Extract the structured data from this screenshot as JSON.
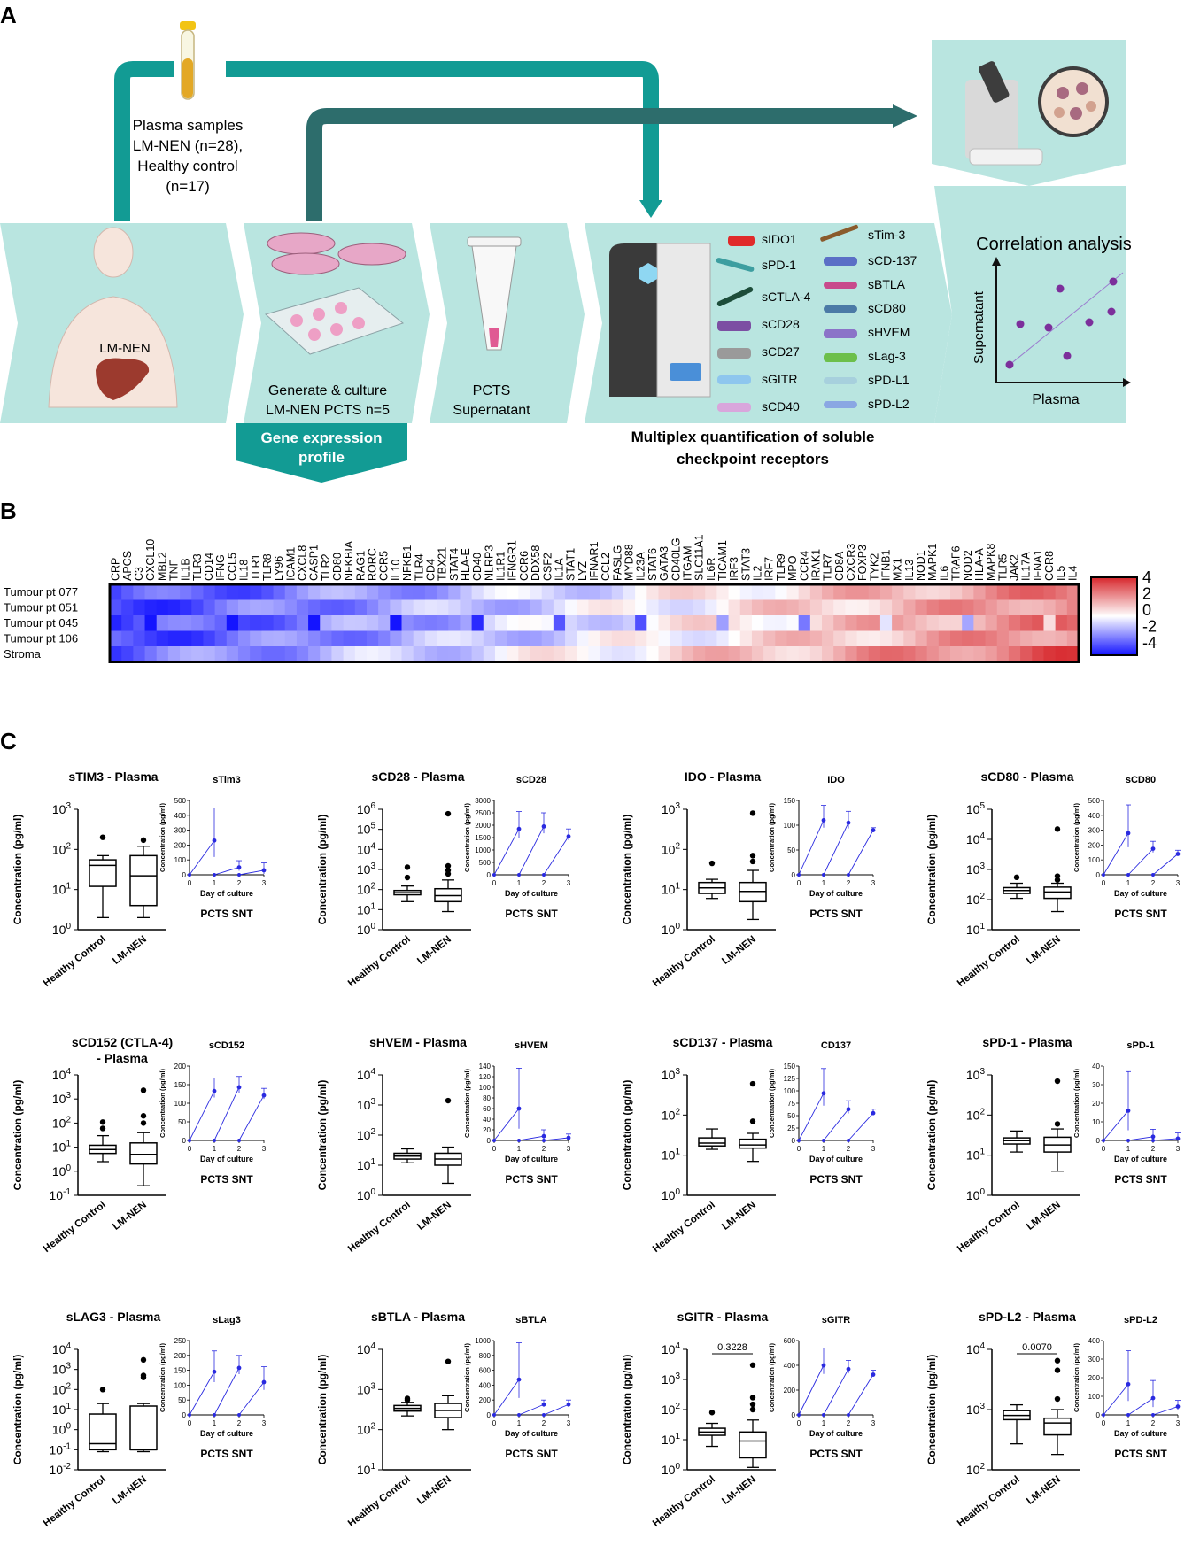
{
  "panel_a": {
    "label": "A",
    "plasma_lines": [
      "Plasma samples",
      "LM-NEN (n=28),",
      "Healthy control",
      "(n=17)"
    ],
    "patient_label": "LM-NEN",
    "culture_lines": [
      "Generate & culture",
      "LM-NEN PCTS n=5"
    ],
    "gene_expression_lines": [
      "Gene expression",
      "profile"
    ],
    "supernatant_lines": [
      "PCTS",
      "Supernatant"
    ],
    "multiplex_lines": [
      "Multiplex quantification of soluble",
      "checkpoint receptors"
    ],
    "receptors_left": [
      "sIDO1",
      "sPD-1",
      "sCTLA-4",
      "sCD28",
      "sCD27",
      "sGITR",
      "sCD40"
    ],
    "receptors_right": [
      "sTim-3",
      "sCD-137",
      "sBTLA",
      "sCD80",
      "sHVEM",
      "sLag-3",
      "sPD-L1",
      "sPD-L2"
    ],
    "correlation_title": "Correlation analysis",
    "correlation_ylabel": "Supernatant",
    "correlation_xlabel": "Plasma"
  },
  "panel_b": {
    "label": "B",
    "genes": [
      "CRP",
      "APCS",
      "C3",
      "CXCL10",
      "MBL2",
      "TNF",
      "IL1B",
      "TLR3",
      "CD14",
      "IFNG",
      "CCL5",
      "IL18",
      "TLR1",
      "TLR8",
      "LY96",
      "ICAM1",
      "CXCL8",
      "CASP1",
      "TLR2",
      "CD80",
      "NFKBIA",
      "RAG1",
      "RORC",
      "CCR5",
      "IL10",
      "NFKB1",
      "TLR4",
      "CD4",
      "TBX21",
      "STAT4",
      "HLA-E",
      "CD40",
      "NLRP3",
      "IL1R1",
      "IFNGR1",
      "CCR6",
      "DDX58",
      "CSF2",
      "IL1A",
      "STAT1",
      "LYZ",
      "IFNAR1",
      "CCL2",
      "FASLG",
      "MYD88",
      "IL23A",
      "STAT6",
      "GATA3",
      "CD40LG",
      "ITGAM",
      "SLC11A1",
      "IL6R",
      "TICAM1",
      "IRF3",
      "STAT3",
      "IL2",
      "IRF7",
      "TLR9",
      "MPO",
      "CCR4",
      "IRAK1",
      "TLR7",
      "CD8A",
      "CXCR3",
      "FOXP3",
      "TYK2",
      "IFNB1",
      "MX1",
      "IL13",
      "NOD1",
      "MAPK1",
      "IL6",
      "TRAF6",
      "NOD2",
      "HLA-A",
      "MAPK8",
      "TLR5",
      "JAK2",
      "IL17A",
      "IFNA1",
      "CCR8",
      "IL5",
      "IL4"
    ],
    "rows": [
      "Tumour pt 077",
      "Tumour pt 051",
      "Tumour pt 045",
      "Tumour pt 106",
      "Stroma"
    ],
    "scale_ticks": [
      "4",
      "2",
      "0",
      "-2",
      "-4"
    ],
    "scale_colors": {
      "high": "#d7262b",
      "mid": "#ffffff",
      "low": "#1414ff"
    }
  },
  "panel_c": {
    "label": "C",
    "box_categories": [
      "Healthy Control",
      "LM-NEN"
    ],
    "y_label": "Concentration (pg/ml)",
    "snt_label": "PCTS SNT",
    "inset_ylabel": "Concentration (pg/ml)",
    "inset_xlabel": "Day of culture",
    "inset_xticks": [
      "0",
      "1",
      "2",
      "3"
    ],
    "line_color": "#2a2ae0"
  },
  "chart_data": [
    {
      "type": "box",
      "title": "sTIM3 - Plasma",
      "log_y": true,
      "y_ticks": [
        "10^0",
        "10^1",
        "10^2",
        "10^3"
      ],
      "ylim_exp": [
        0,
        3
      ],
      "groups": [
        {
          "name": "Healthy Control",
          "min": 2,
          "q1": 12,
          "median": 40,
          "q3": 55,
          "max": 70,
          "outliers": [
            200
          ]
        },
        {
          "name": "LM-NEN",
          "min": 2,
          "q1": 4,
          "median": 22,
          "q3": 70,
          "max": 120,
          "outliers": [
            170
          ]
        }
      ],
      "inset": {
        "title": "sTim3",
        "ylim": [
          0,
          500
        ],
        "yticks": [
          0,
          100,
          200,
          300,
          400,
          500
        ],
        "points": [
          [
            1,
            230
          ],
          [
            2,
            50
          ],
          [
            3,
            30
          ]
        ],
        "err": [
          450,
          95,
          80
        ]
      }
    },
    {
      "type": "box",
      "title": "sCD28 - Plasma",
      "log_y": true,
      "y_ticks": [
        "10^0",
        "10^1",
        "10^2",
        "10^3",
        "10^4",
        "10^5",
        "10^6"
      ],
      "ylim_exp": [
        0,
        6
      ],
      "groups": [
        {
          "name": "Healthy Control",
          "min": 25,
          "q1": 55,
          "median": 70,
          "q3": 90,
          "max": 150,
          "outliers": [
            400,
            1300
          ]
        },
        {
          "name": "LM-NEN",
          "min": 8,
          "q1": 25,
          "median": 50,
          "q3": 110,
          "max": 300,
          "outliers": [
            600,
            900,
            1500,
            600000
          ]
        }
      ],
      "inset": {
        "title": "sCD28",
        "ylim": [
          0,
          3000
        ],
        "yticks": [
          0,
          500,
          1000,
          1500,
          2000,
          2500,
          3000
        ],
        "points": [
          [
            1,
            1850
          ],
          [
            2,
            1950
          ],
          [
            3,
            1550
          ]
        ],
        "err": [
          2550,
          2500,
          1850
        ]
      }
    },
    {
      "type": "box",
      "title": "IDO - Plasma",
      "log_y": true,
      "y_ticks": [
        "10^0",
        "10^1",
        "10^2",
        "10^3"
      ],
      "ylim_exp": [
        0,
        3
      ],
      "groups": [
        {
          "name": "Healthy Control",
          "min": 6,
          "q1": 8,
          "median": 11,
          "q3": 15,
          "max": 18,
          "outliers": [
            45
          ]
        },
        {
          "name": "LM-NEN",
          "min": 1.8,
          "q1": 5,
          "median": 9,
          "q3": 15,
          "max": 30,
          "outliers": [
            50,
            70,
            800
          ]
        }
      ],
      "inset": {
        "title": "IDO",
        "ylim": [
          0,
          150
        ],
        "yticks": [
          0,
          50,
          100,
          150
        ],
        "points": [
          [
            1,
            110
          ],
          [
            2,
            105
          ],
          [
            3,
            90
          ]
        ],
        "err": [
          140,
          128,
          95
        ]
      }
    },
    {
      "type": "box",
      "title": "sCD80 - Plasma",
      "log_y": true,
      "y_ticks": [
        "10^1",
        "10^2",
        "10^3",
        "10^4",
        "10^5"
      ],
      "ylim_exp": [
        1,
        5
      ],
      "groups": [
        {
          "name": "Healthy Control",
          "min": 110,
          "q1": 160,
          "median": 200,
          "q3": 250,
          "max": 350,
          "outliers": [
            550
          ]
        },
        {
          "name": "LM-NEN",
          "min": 40,
          "q1": 110,
          "median": 180,
          "q3": 260,
          "max": 350,
          "outliers": [
            450,
            600,
            22000
          ]
        }
      ],
      "inset": {
        "title": "sCD80",
        "ylim": [
          0,
          500
        ],
        "yticks": [
          0,
          100,
          200,
          300,
          400,
          500
        ],
        "points": [
          [
            1,
            280
          ],
          [
            2,
            175
          ],
          [
            3,
            140
          ]
        ],
        "err": [
          470,
          225,
          165
        ]
      }
    },
    {
      "type": "box",
      "title": "sCD152 (CTLA-4) - Plasma",
      "log_y": true,
      "y_ticks": [
        "10^-1",
        "10^0",
        "10^1",
        "10^2",
        "10^3",
        "10^4"
      ],
      "ylim_exp": [
        -1,
        4
      ],
      "groups": [
        {
          "name": "Healthy Control",
          "min": 2.5,
          "q1": 5.5,
          "median": 8,
          "q3": 12,
          "max": 30,
          "outliers": [
            110,
            60
          ]
        },
        {
          "name": "LM-NEN",
          "min": 0.25,
          "q1": 2,
          "median": 5,
          "q3": 15,
          "max": 40,
          "outliers": [
            100,
            200,
            2300
          ]
        }
      ],
      "inset": {
        "title": "sCD152",
        "ylim": [
          0,
          200
        ],
        "yticks": [
          0,
          50,
          100,
          150,
          200
        ],
        "points": [
          [
            1,
            133
          ],
          [
            2,
            143
          ],
          [
            3,
            121
          ]
        ],
        "err": [
          168,
          172,
          140
        ]
      }
    },
    {
      "type": "box",
      "title": "sHVEM - Plasma",
      "log_y": true,
      "y_ticks": [
        "10^0",
        "10^1",
        "10^2",
        "10^3",
        "10^4"
      ],
      "ylim_exp": [
        0,
        4
      ],
      "groups": [
        {
          "name": "Healthy Control",
          "min": 12,
          "q1": 16,
          "median": 20,
          "q3": 25,
          "max": 35,
          "outliers": []
        },
        {
          "name": "LM-NEN",
          "min": 2.5,
          "q1": 10,
          "median": 16,
          "q3": 25,
          "max": 40,
          "outliers": [
            1400
          ]
        }
      ],
      "inset": {
        "title": "sHVEM",
        "ylim": [
          0,
          140
        ],
        "yticks": [
          0,
          20,
          40,
          60,
          80,
          100,
          120,
          140
        ],
        "points": [
          [
            1,
            60
          ],
          [
            2,
            8
          ],
          [
            3,
            5
          ]
        ],
        "err": [
          136,
          20,
          12
        ]
      }
    },
    {
      "type": "box",
      "title": "sCD137 - Plasma",
      "log_y": true,
      "y_ticks": [
        "10^0",
        "10^1",
        "10^2",
        "10^3"
      ],
      "ylim_exp": [
        0,
        3
      ],
      "groups": [
        {
          "name": "Healthy Control",
          "min": 14,
          "q1": 17,
          "median": 20,
          "q3": 27,
          "max": 45,
          "outliers": []
        },
        {
          "name": "LM-NEN",
          "min": 7,
          "q1": 15,
          "median": 18,
          "q3": 25,
          "max": 35,
          "outliers": [
            70,
            600
          ]
        }
      ],
      "inset": {
        "title": "CD137",
        "ylim": [
          0,
          150
        ],
        "yticks": [
          0,
          25,
          50,
          75,
          100,
          125,
          150
        ],
        "points": [
          [
            1,
            95
          ],
          [
            2,
            63
          ],
          [
            3,
            55
          ]
        ],
        "err": [
          145,
          80,
          63
        ]
      }
    },
    {
      "type": "box",
      "title": "sPD-1 - Plasma",
      "log_y": true,
      "y_ticks": [
        "10^0",
        "10^1",
        "10^2",
        "10^3"
      ],
      "ylim_exp": [
        0,
        3
      ],
      "groups": [
        {
          "name": "Healthy Control",
          "min": 12,
          "q1": 19,
          "median": 23,
          "q3": 27,
          "max": 40,
          "outliers": []
        },
        {
          "name": "LM-NEN",
          "min": 4,
          "q1": 12,
          "median": 18,
          "q3": 28,
          "max": 45,
          "outliers": [
            60,
            700
          ]
        }
      ],
      "inset": {
        "title": "sPD-1",
        "ylim": [
          0,
          40
        ],
        "yticks": [
          0,
          10,
          20,
          30,
          40
        ],
        "points": [
          [
            1,
            16
          ],
          [
            2,
            2
          ],
          [
            3,
            1
          ]
        ],
        "err": [
          37,
          6,
          4
        ]
      }
    },
    {
      "type": "box",
      "title": "sLAG3 - Plasma",
      "log_y": true,
      "y_ticks": [
        "10^-2",
        "10^-1",
        "10^0",
        "10^1",
        "10^2",
        "10^3",
        "10^4"
      ],
      "ylim_exp": [
        -2,
        4
      ],
      "groups": [
        {
          "name": "Healthy Control",
          "min": 0.08,
          "q1": 0.1,
          "median": 0.2,
          "q3": 6,
          "max": 20,
          "outliers": [
            100
          ]
        },
        {
          "name": "LM-NEN",
          "min": 0.08,
          "q1": 0.1,
          "median": 0.1,
          "q3": 15,
          "max": 20,
          "outliers": [
            400,
            500,
            3000
          ]
        }
      ],
      "inset": {
        "title": "sLag3",
        "ylim": [
          0,
          250
        ],
        "yticks": [
          0,
          50,
          100,
          150,
          200,
          250
        ],
        "points": [
          [
            1,
            145
          ],
          [
            2,
            158
          ],
          [
            3,
            110
          ]
        ],
        "err": [
          215,
          200,
          162
        ]
      }
    },
    {
      "type": "box",
      "title": "sBTLA - Plasma",
      "log_y": true,
      "y_ticks": [
        "10^1",
        "10^2",
        "10^3",
        "10^4"
      ],
      "ylim_exp": [
        1,
        4
      ],
      "groups": [
        {
          "name": "Healthy Control",
          "min": 220,
          "q1": 290,
          "median": 340,
          "q3": 400,
          "max": 480,
          "outliers": [
            550,
            600
          ]
        },
        {
          "name": "LM-NEN",
          "min": 100,
          "q1": 200,
          "median": 300,
          "q3": 450,
          "max": 700,
          "outliers": [
            5000
          ]
        }
      ],
      "inset": {
        "title": "sBTLA",
        "ylim": [
          0,
          1000
        ],
        "yticks": [
          0,
          200,
          400,
          600,
          800,
          1000
        ],
        "points": [
          [
            1,
            475
          ],
          [
            2,
            140
          ],
          [
            3,
            140
          ]
        ],
        "err": [
          970,
          200,
          200
        ]
      }
    },
    {
      "type": "box",
      "title": "sGITR - Plasma",
      "log_y": true,
      "y_ticks": [
        "10^0",
        "10^1",
        "10^2",
        "10^3",
        "10^4"
      ],
      "ylim_exp": [
        0,
        4
      ],
      "pvalue": "0.3228",
      "groups": [
        {
          "name": "Healthy Control",
          "min": 6,
          "q1": 14,
          "median": 18,
          "q3": 24,
          "max": 35,
          "outliers": [
            80
          ]
        },
        {
          "name": "LM-NEN",
          "min": 1.2,
          "q1": 2.5,
          "median": 9,
          "q3": 18,
          "max": 45,
          "outliers": [
            100,
            150,
            250,
            3000
          ]
        }
      ],
      "inset": {
        "title": "sGITR",
        "ylim": [
          0,
          600
        ],
        "yticks": [
          0,
          200,
          400,
          600
        ],
        "points": [
          [
            1,
            400
          ],
          [
            2,
            370
          ],
          [
            3,
            325
          ]
        ],
        "err": [
          540,
          440,
          360
        ]
      }
    },
    {
      "type": "box",
      "title": "sPD-L2 - Plasma",
      "log_y": true,
      "y_ticks": [
        "10^2",
        "10^3",
        "10^4"
      ],
      "ylim_exp": [
        2,
        4
      ],
      "pvalue": "0.0070",
      "groups": [
        {
          "name": "Healthy Control",
          "min": 270,
          "q1": 680,
          "median": 800,
          "q3": 960,
          "max": 1200,
          "outliers": []
        },
        {
          "name": "LM-NEN",
          "min": 180,
          "q1": 380,
          "median": 600,
          "q3": 720,
          "max": 1000,
          "outliers": [
            1500,
            4500,
            6500
          ]
        }
      ],
      "inset": {
        "title": "sPD-L2",
        "ylim": [
          0,
          400
        ],
        "yticks": [
          0,
          100,
          200,
          300,
          400
        ],
        "points": [
          [
            1,
            165
          ],
          [
            2,
            90
          ],
          [
            3,
            45
          ]
        ],
        "err": [
          345,
          185,
          78
        ]
      }
    }
  ]
}
